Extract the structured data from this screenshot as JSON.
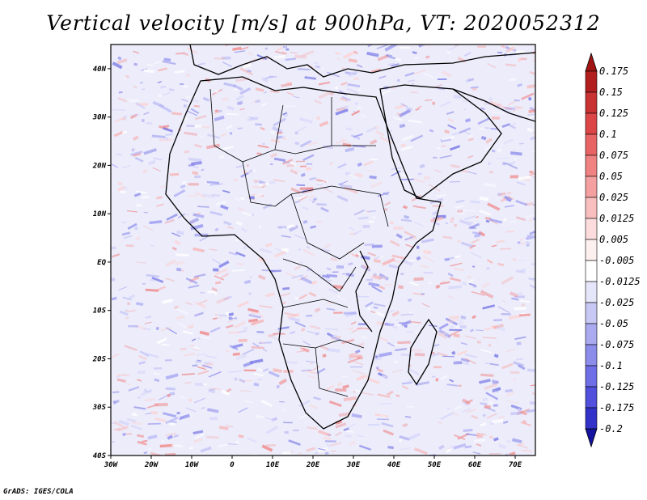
{
  "title": "Vertical velocity [m/s] at 900hPa, VT: 2020052312",
  "credit": "GrADS: IGES/COLA",
  "map": {
    "lon_range": [
      -30,
      75
    ],
    "lat_range": [
      -40,
      45
    ],
    "x_ticks": [
      {
        "lon": -30,
        "label": "30W"
      },
      {
        "lon": -20,
        "label": "20W"
      },
      {
        "lon": -10,
        "label": "10W"
      },
      {
        "lon": 0,
        "label": "0"
      },
      {
        "lon": 10,
        "label": "10E"
      },
      {
        "lon": 20,
        "label": "20E"
      },
      {
        "lon": 30,
        "label": "30E"
      },
      {
        "lon": 40,
        "label": "40E"
      },
      {
        "lon": 50,
        "label": "50E"
      },
      {
        "lon": 60,
        "label": "60E"
      },
      {
        "lon": 70,
        "label": "70E"
      }
    ],
    "y_ticks": [
      {
        "lat": 40,
        "label": "40N"
      },
      {
        "lat": 30,
        "label": "30N"
      },
      {
        "lat": 20,
        "label": "20N"
      },
      {
        "lat": 10,
        "label": "10N"
      },
      {
        "lat": 0,
        "label": "EQ"
      },
      {
        "lat": -10,
        "label": "10S"
      },
      {
        "lat": -20,
        "label": "20S"
      },
      {
        "lat": -30,
        "label": "30S"
      },
      {
        "lat": -40,
        "label": "40S"
      }
    ]
  },
  "colorbar": {
    "levels": [
      {
        "label": "0.175",
        "color": "#b21e1e"
      },
      {
        "label": "0.15",
        "color": "#c83232"
      },
      {
        "label": "0.125",
        "color": "#dc4646"
      },
      {
        "label": "0.1",
        "color": "#e86464"
      },
      {
        "label": "0.075",
        "color": "#f08282"
      },
      {
        "label": "0.05",
        "color": "#f5a0a0"
      },
      {
        "label": "0.025",
        "color": "#f9bebe"
      },
      {
        "label": "0.0125",
        "color": "#fcdcdc"
      },
      {
        "label": "0.005",
        "color": "#fff0f0"
      },
      {
        "label": "-0.005",
        "color": "#ffffff"
      },
      {
        "label": "-0.0125",
        "color": "#e6e6fa"
      },
      {
        "label": "-0.025",
        "color": "#c8c8f5"
      },
      {
        "label": "-0.05",
        "color": "#aaaaf0"
      },
      {
        "label": "-0.075",
        "color": "#8c8ceb"
      },
      {
        "label": "-0.1",
        "color": "#6e6ee6"
      },
      {
        "label": "-0.125",
        "color": "#5050dc"
      },
      {
        "label": "-0.175",
        "color": "#3232c8"
      },
      {
        "label": "-0.2",
        "color": "#1e1eb4"
      }
    ],
    "top_color": "#a01414",
    "bottom_color": "#1414a0"
  }
}
